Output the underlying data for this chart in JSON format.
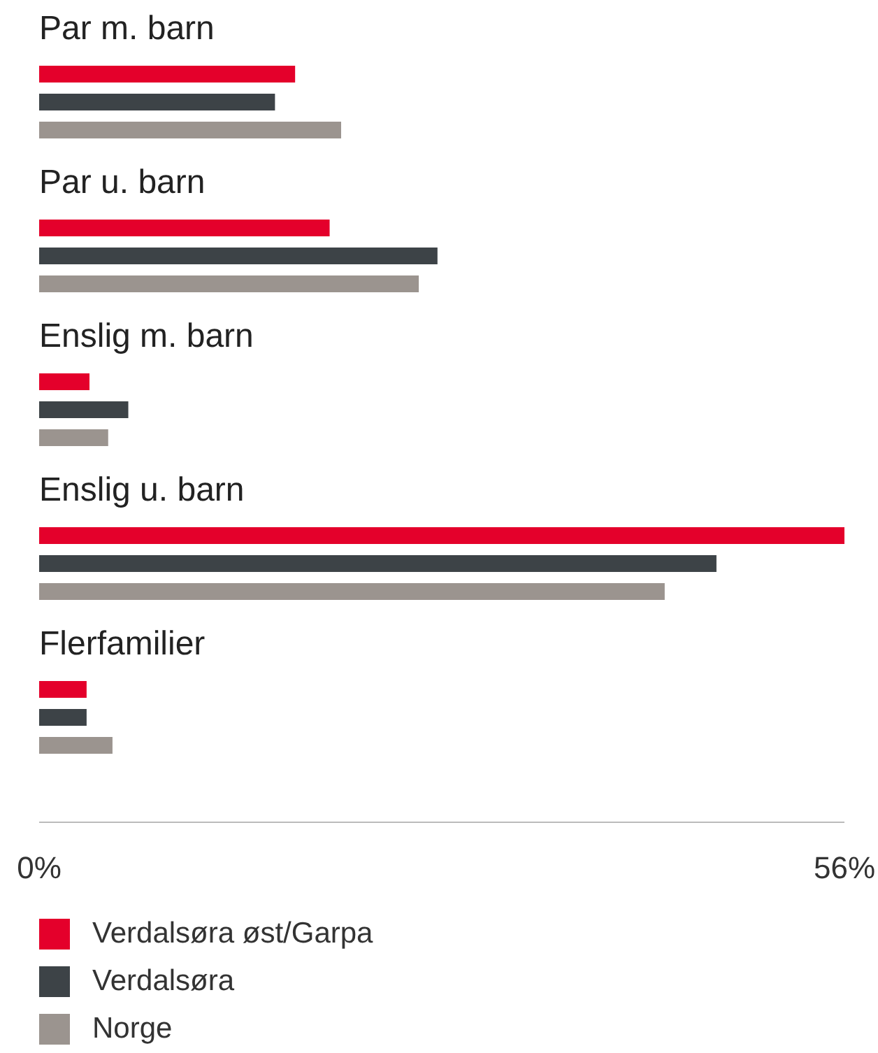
{
  "chart_data": {
    "type": "bar",
    "orientation": "horizontal",
    "categories": [
      "Par m. barn",
      "Par u. barn",
      "Enslig m. barn",
      "Enslig u. barn",
      "Flerfamilier"
    ],
    "series": [
      {
        "name": "Verdalsøra øst/Garpa",
        "color": "#e4002b",
        "values": [
          17.8,
          20.2,
          3.5,
          56,
          3.3
        ]
      },
      {
        "name": "Verdalsøra",
        "color": "#3d4347",
        "values": [
          16.4,
          27.7,
          6.2,
          47.1,
          3.3
        ]
      },
      {
        "name": "Norge",
        "color": "#9b948f",
        "values": [
          21,
          26.4,
          4.8,
          43.5,
          5.1
        ]
      }
    ],
    "xlim": [
      0,
      56
    ],
    "xticks": [
      {
        "value": 0,
        "label": "0%"
      },
      {
        "value": 56,
        "label": "56%"
      }
    ],
    "grid": false,
    "legend": "bottom"
  }
}
